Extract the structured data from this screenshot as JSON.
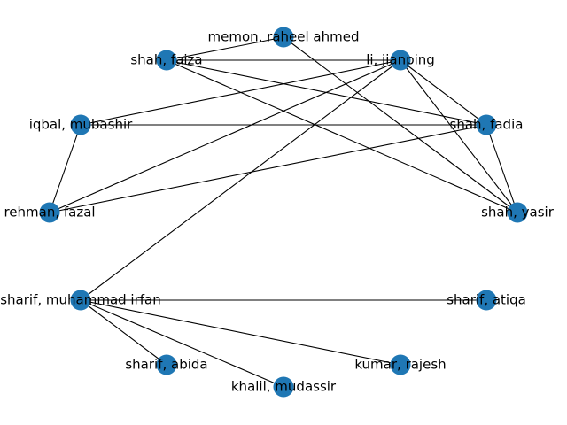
{
  "graph": {
    "node_color": "#1f77b4",
    "edge_color": "#000000",
    "nodes": [
      {
        "id": "memon",
        "label": "memon, raheel ahmed"
      },
      {
        "id": "li",
        "label": "li, jianping"
      },
      {
        "id": "shahfaiza",
        "label": "shah, faiza"
      },
      {
        "id": "iqbal",
        "label": "iqbal, mubashir"
      },
      {
        "id": "shahfadia",
        "label": "shah, fadia"
      },
      {
        "id": "rehman",
        "label": "rehman, fazal"
      },
      {
        "id": "shahyasir",
        "label": "shah, yasir"
      },
      {
        "id": "sharifirfan",
        "label": "sharif, muhammad irfan"
      },
      {
        "id": "sharifatiqa",
        "label": "sharif, atiqa"
      },
      {
        "id": "sharifabida",
        "label": "sharif, abida"
      },
      {
        "id": "kumar",
        "label": "kumar, rajesh"
      },
      {
        "id": "khalil",
        "label": "khalil, mudassir"
      }
    ],
    "edges": [
      [
        "memon",
        "shahfaiza"
      ],
      [
        "memon",
        "shahyasir"
      ],
      [
        "shahfaiza",
        "li"
      ],
      [
        "shahfaiza",
        "shahfadia"
      ],
      [
        "shahfaiza",
        "shahyasir"
      ],
      [
        "li",
        "iqbal"
      ],
      [
        "li",
        "rehman"
      ],
      [
        "li",
        "sharifirfan"
      ],
      [
        "li",
        "shahfadia"
      ],
      [
        "li",
        "shahyasir"
      ],
      [
        "iqbal",
        "shahfadia"
      ],
      [
        "iqbal",
        "rehman"
      ],
      [
        "rehman",
        "shahfadia"
      ],
      [
        "shahfadia",
        "shahyasir"
      ],
      [
        "sharifirfan",
        "sharifatiqa"
      ],
      [
        "sharifirfan",
        "sharifabida"
      ],
      [
        "sharifirfan",
        "kumar"
      ],
      [
        "sharifirfan",
        "khalil"
      ]
    ]
  }
}
